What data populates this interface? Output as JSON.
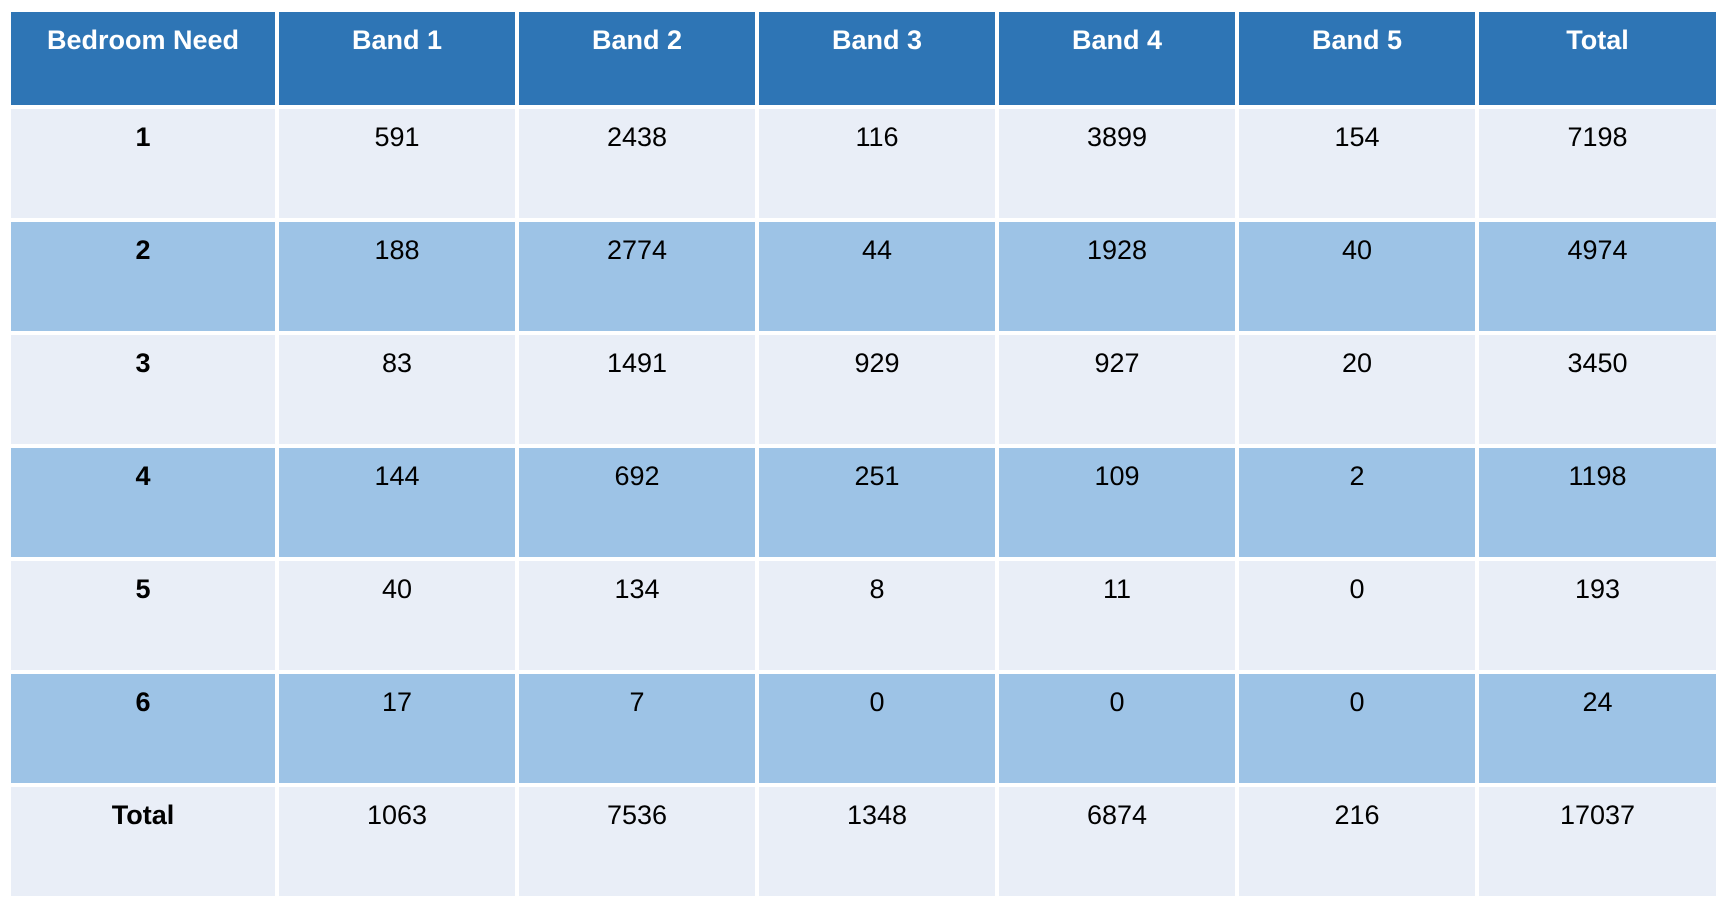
{
  "chart_data": {
    "type": "table",
    "columns": [
      "Bedroom Need",
      "Band 1",
      "Band 2",
      "Band 3",
      "Band 4",
      "Band 5",
      "Total"
    ],
    "rows": [
      {
        "label": "1",
        "values": [
          591,
          2438,
          116,
          3899,
          154,
          7198
        ]
      },
      {
        "label": "2",
        "values": [
          188,
          2774,
          44,
          1928,
          40,
          4974
        ]
      },
      {
        "label": "3",
        "values": [
          83,
          1491,
          929,
          927,
          20,
          3450
        ]
      },
      {
        "label": "4",
        "values": [
          144,
          692,
          251,
          109,
          2,
          1198
        ]
      },
      {
        "label": "5",
        "values": [
          40,
          134,
          8,
          11,
          0,
          193
        ]
      },
      {
        "label": "6",
        "values": [
          17,
          7,
          0,
          0,
          0,
          24
        ]
      },
      {
        "label": "Total",
        "values": [
          1063,
          7536,
          1348,
          6874,
          216,
          17037
        ]
      }
    ]
  },
  "colors": {
    "header_bg": "#2E75B5",
    "header_text": "#FFFFFF",
    "band_light": "#E9EEF7",
    "band_medium": "#9DC3E6",
    "gridline": "#FFFFFF",
    "body_text": "#000000"
  }
}
